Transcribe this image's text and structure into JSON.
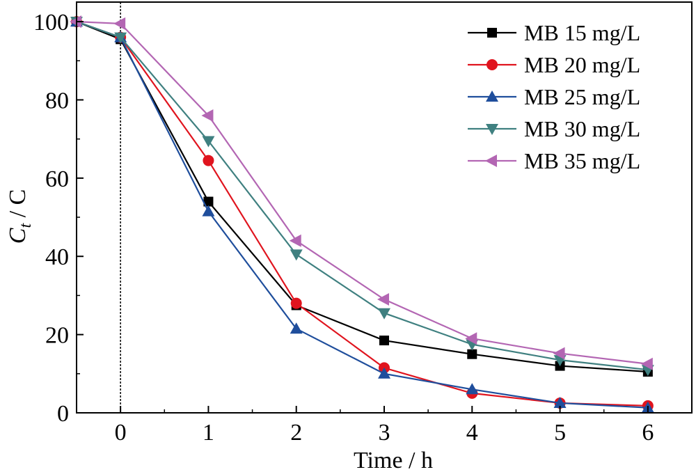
{
  "chart_data": {
    "type": "line",
    "xlabel": "Time / h",
    "ylabel_main": "C",
    "ylabel_sub": "t",
    "ylabel_tail": " / C",
    "xlim": [
      -0.5,
      6.5
    ],
    "ylim": [
      0,
      105
    ],
    "x_ticks": [
      0,
      1,
      2,
      3,
      4,
      5,
      6
    ],
    "y_ticks": [
      0,
      20,
      40,
      60,
      80,
      100
    ],
    "reference_line_x": 0,
    "grid": false,
    "legend_position": "top-right",
    "x": [
      -0.5,
      0,
      1,
      2,
      3,
      4,
      5,
      6
    ],
    "series": [
      {
        "name": "MB 15 mg/L",
        "color": "#000000",
        "marker": "square",
        "values": [
          100,
          95.5,
          54,
          27.5,
          18.5,
          15,
          12,
          10.5
        ]
      },
      {
        "name": "MB 20 mg/L",
        "color": "#e0141e",
        "marker": "circle",
        "values": [
          100,
          96,
          64.5,
          28,
          11.5,
          5,
          2.5,
          1.8
        ]
      },
      {
        "name": "MB 25 mg/L",
        "color": "#1f4e9c",
        "marker": "triangle-up",
        "values": [
          100,
          96,
          51.5,
          21.5,
          10,
          6,
          2.5,
          1.3
        ]
      },
      {
        "name": "MB 30 mg/L",
        "color": "#3f8080",
        "marker": "triangle-down",
        "values": [
          100,
          96,
          69.5,
          40.5,
          25.5,
          17.5,
          13.5,
          11
        ]
      },
      {
        "name": "MB 35 mg/L",
        "color": "#b366b3",
        "marker": "triangle-left",
        "values": [
          100,
          99.5,
          76,
          44,
          29,
          19,
          15.2,
          12.5
        ]
      }
    ]
  }
}
